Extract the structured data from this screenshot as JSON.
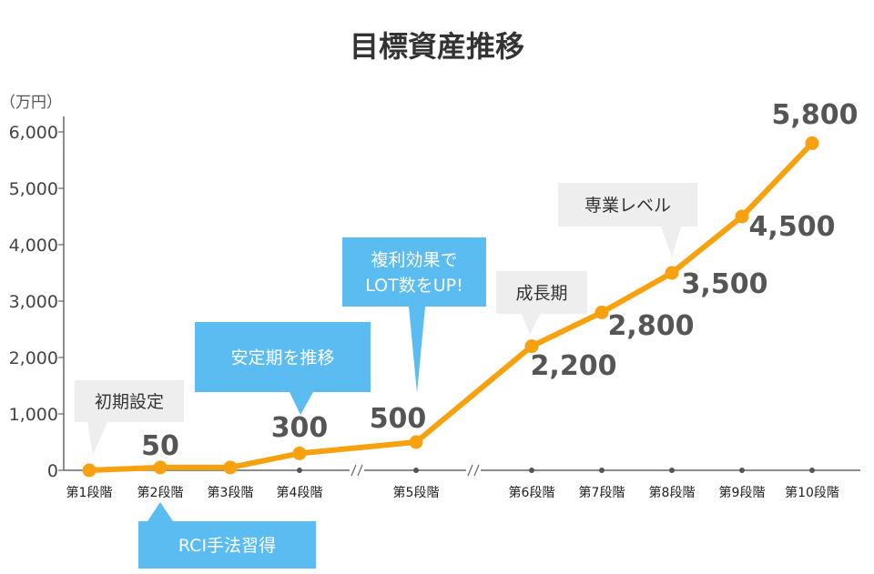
{
  "colors": {
    "line": "#f7a10f",
    "axis": "#666666",
    "callout_gray": "#eeeeee",
    "callout_blue": "#5bbcf2",
    "text": "#444444"
  },
  "chart_data": {
    "type": "line",
    "title": "目標資産推移",
    "unit_label": "（万円）",
    "ylim": [
      0,
      6000
    ],
    "yticks": [
      {
        "value": 0,
        "label": "0"
      },
      {
        "value": 1000,
        "label": "1,000"
      },
      {
        "value": 2000,
        "label": "2,000"
      },
      {
        "value": 3000,
        "label": "3,000"
      },
      {
        "value": 4000,
        "label": "4,000"
      },
      {
        "value": 5000,
        "label": "5,000"
      },
      {
        "value": 6000,
        "label": "6,000"
      }
    ],
    "categories": [
      "第1段階",
      "第2段階",
      "第3段階",
      "第4段階",
      "第5段階",
      "第6段階",
      "第7段階",
      "第8段階",
      "第9段階",
      "第10段階"
    ],
    "values": [
      0,
      50,
      50,
      300,
      500,
      2200,
      2800,
      3500,
      4500,
      5800
    ],
    "data_labels": [
      {
        "index": 1,
        "text": "50"
      },
      {
        "index": 3,
        "text": "300"
      },
      {
        "index": 4,
        "text": "500"
      },
      {
        "index": 5,
        "text": "2,200"
      },
      {
        "index": 6,
        "text": "2,800"
      },
      {
        "index": 7,
        "text": "3,500"
      },
      {
        "index": 8,
        "text": "4,500"
      },
      {
        "index": 9,
        "text": "5,800"
      }
    ],
    "axis_breaks": [
      "after 第4段階",
      "after 第5段階"
    ],
    "annotations": [
      {
        "text": [
          "初期設定"
        ],
        "style": "gray",
        "target": "第1段階"
      },
      {
        "text": [
          "RCI手法習得"
        ],
        "style": "blue",
        "target": "第2段階"
      },
      {
        "text": [
          "安定期を推移"
        ],
        "style": "blue",
        "target": "第4段階"
      },
      {
        "text": [
          "複利効果で",
          "LOT数をUP!"
        ],
        "style": "blue",
        "target": "第5段階"
      },
      {
        "text": [
          "成長期"
        ],
        "style": "gray",
        "target": "第6段階"
      },
      {
        "text": [
          "専業レベル"
        ],
        "style": "gray",
        "target": "第8段階"
      }
    ],
    "grid": false,
    "legend": "none"
  }
}
